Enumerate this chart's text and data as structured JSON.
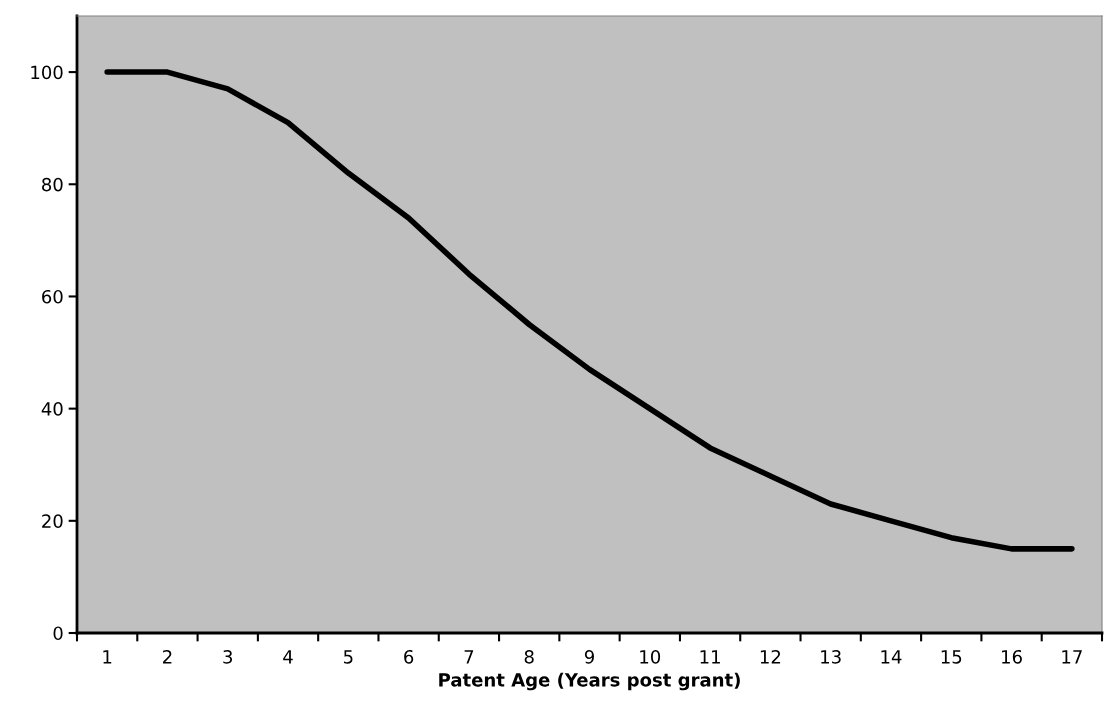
{
  "chart_data": {
    "type": "line",
    "xlabel": "Patent Age (Years post grant)",
    "categories": [
      "1",
      "2",
      "3",
      "4",
      "5",
      "6",
      "7",
      "8",
      "9",
      "10",
      "11",
      "12",
      "13",
      "14",
      "15",
      "16",
      "17"
    ],
    "series": [
      {
        "color": "#000000",
        "values": [
          100,
          100,
          97,
          91,
          82,
          74,
          64,
          55,
          47,
          40,
          33,
          28,
          23,
          20,
          17,
          15,
          15
        ]
      }
    ],
    "ylim": [
      0,
      110
    ],
    "yticks": [
      0,
      20,
      40,
      60,
      80,
      100
    ],
    "grid": false,
    "marker": "none",
    "line_style": "solid"
  }
}
